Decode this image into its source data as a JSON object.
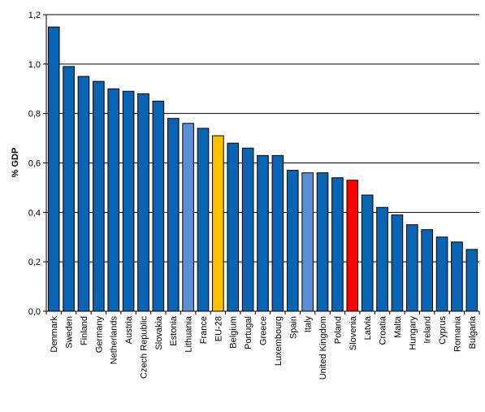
{
  "chart_data": {
    "type": "bar",
    "ylabel": "% GDP",
    "ylim": [
      0,
      1.2
    ],
    "yticks": [
      "0,0",
      "0,2",
      "0,4",
      "0,6",
      "0,8",
      "1,0",
      "1,2"
    ],
    "grid": true,
    "categories": [
      "Denmark",
      "Sweden",
      "Finland",
      "Germany",
      "Netherlands",
      "Austria",
      "Czech Republic",
      "Slovakia",
      "Estonia",
      "Lithuania",
      "France",
      "EU-28",
      "Belgium",
      "Portugal",
      "Greece",
      "Luxembourg",
      "Spain",
      "Italy",
      "United Kingdom",
      "Poland",
      "Slovenia",
      "Latvia",
      "Croatia",
      "Malta",
      "Hungary",
      "Ireland",
      "Cyprus",
      "Romania",
      "Bulgaria"
    ],
    "values": [
      1.15,
      0.99,
      0.95,
      0.93,
      0.9,
      0.89,
      0.88,
      0.85,
      0.78,
      0.76,
      0.74,
      0.71,
      0.68,
      0.66,
      0.63,
      0.63,
      0.57,
      0.56,
      0.56,
      0.54,
      0.53,
      0.47,
      0.42,
      0.39,
      0.35,
      0.33,
      0.3,
      0.28,
      0.25
    ],
    "colors": {
      "default": "#0a64b4",
      "highlight_light": "#5b8fd6",
      "eu": "#ffc000",
      "slovenia": "#ff0000"
    },
    "bar_color_keys": [
      "default",
      "default",
      "default",
      "default",
      "default",
      "default",
      "default",
      "default",
      "default",
      "highlight_light",
      "default",
      "eu",
      "default",
      "default",
      "default",
      "default",
      "default",
      "highlight_light",
      "default",
      "default",
      "slovenia",
      "default",
      "default",
      "default",
      "default",
      "default",
      "default",
      "default",
      "default"
    ]
  }
}
